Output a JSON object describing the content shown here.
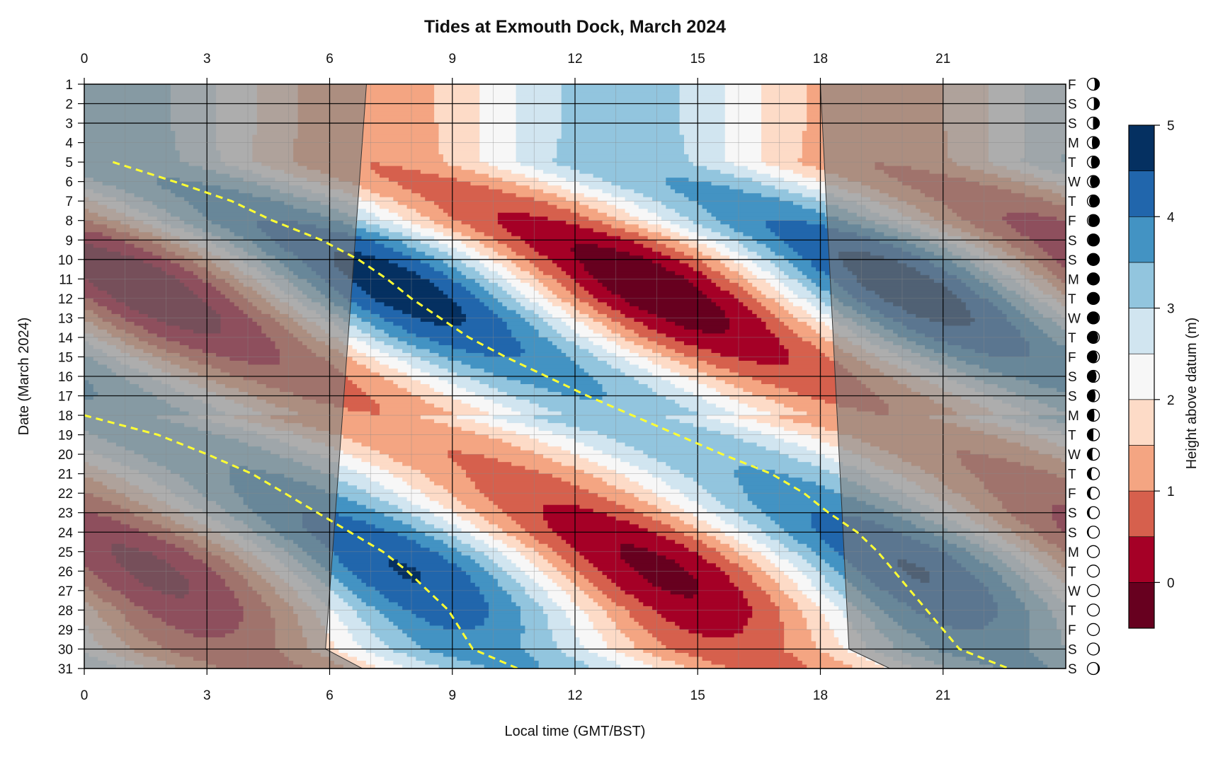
{
  "chart_data": {
    "type": "heatmap",
    "title": "Tides at Exmouth Dock, March 2024",
    "xlabel": "Local time (GMT/BST)",
    "ylabel": "Date (March 2024)",
    "colorbar_label": "Height above datum (m)",
    "xlim": [
      0,
      24
    ],
    "ylim": [
      1,
      31
    ],
    "x_ticks": [
      0,
      3,
      6,
      9,
      12,
      15,
      18,
      21
    ],
    "y_ticks": [
      1,
      2,
      3,
      4,
      5,
      6,
      7,
      8,
      9,
      10,
      11,
      12,
      13,
      14,
      15,
      16,
      17,
      18,
      19,
      20,
      21,
      22,
      23,
      24,
      25,
      26,
      27,
      28,
      29,
      30,
      31
    ],
    "colorbar_ticks": [
      0,
      1,
      2,
      3,
      4,
      5
    ],
    "levels": [
      -0.5,
      0,
      0.5,
      1,
      1.5,
      2,
      2.5,
      3,
      3.5,
      4,
      4.5,
      5
    ],
    "level_colors": [
      "#67001f",
      "#a50026",
      "#d6604d",
      "#f4a582",
      "#fddbc7",
      "#f7f7f7",
      "#d1e5f0",
      "#92c5de",
      "#4393c3",
      "#2166ac",
      "#053061"
    ],
    "high_water_times_hours": {
      "morning": [
        [
          5,
          0.7
        ],
        [
          6,
          2.2
        ],
        [
          7,
          3.6
        ],
        [
          8,
          4.6
        ],
        [
          9,
          5.8
        ],
        [
          10,
          6.7
        ],
        [
          11,
          7.4
        ],
        [
          12,
          8.0
        ],
        [
          13,
          8.7
        ],
        [
          14,
          9.4
        ],
        [
          15,
          10.3
        ],
        [
          16,
          11.3
        ],
        [
          17,
          12.3
        ],
        [
          18,
          13.4
        ],
        [
          19,
          14.5
        ],
        [
          20,
          15.6
        ],
        [
          21,
          16.8
        ],
        [
          22,
          17.6
        ],
        [
          23,
          18.2
        ],
        [
          24,
          18.9
        ],
        [
          25,
          19.4
        ],
        [
          26,
          19.8
        ],
        [
          27,
          20.2
        ],
        [
          28,
          20.6
        ],
        [
          29,
          21.0
        ],
        [
          30,
          21.4
        ],
        [
          31,
          22.6
        ]
      ],
      "evening": [
        [
          18,
          0.0
        ],
        [
          19,
          1.8
        ],
        [
          20,
          3.0
        ],
        [
          21,
          4.1
        ],
        [
          22,
          4.9
        ],
        [
          23,
          5.7
        ],
        [
          24,
          6.5
        ],
        [
          25,
          7.3
        ],
        [
          26,
          7.9
        ],
        [
          27,
          8.4
        ],
        [
          28,
          8.9
        ],
        [
          29,
          9.2
        ],
        [
          30,
          9.5
        ],
        [
          31,
          10.6
        ]
      ]
    },
    "daylight_hours": {
      "sunrise": [
        [
          1,
          6.9
        ],
        [
          30,
          5.9
        ],
        [
          31,
          6.8
        ]
      ],
      "sunset": [
        [
          1,
          18.0
        ],
        [
          30,
          18.7
        ],
        [
          31,
          19.7
        ]
      ]
    },
    "moon_phases": [
      {
        "day": 1,
        "letter": "F"
      },
      {
        "day": 2,
        "letter": "S"
      },
      {
        "day": 3,
        "letter": "S"
      },
      {
        "day": 4,
        "letter": "M"
      },
      {
        "day": 5,
        "letter": "T"
      },
      {
        "day": 6,
        "letter": "W"
      },
      {
        "day": 7,
        "letter": "T"
      },
      {
        "day": 8,
        "letter": "F"
      },
      {
        "day": 9,
        "letter": "S"
      },
      {
        "day": 10,
        "letter": "S"
      },
      {
        "day": 11,
        "letter": "M"
      },
      {
        "day": 12,
        "letter": "T"
      },
      {
        "day": 13,
        "letter": "W"
      },
      {
        "day": 14,
        "letter": "T"
      },
      {
        "day": 15,
        "letter": "F"
      },
      {
        "day": 16,
        "letter": "S"
      },
      {
        "day": 17,
        "letter": "S"
      },
      {
        "day": 18,
        "letter": "M"
      },
      {
        "day": 19,
        "letter": "T"
      },
      {
        "day": 20,
        "letter": "W"
      },
      {
        "day": 21,
        "letter": "T"
      },
      {
        "day": 22,
        "letter": "F"
      },
      {
        "day": 23,
        "letter": "S"
      },
      {
        "day": 24,
        "letter": "S"
      },
      {
        "day": 25,
        "letter": "M"
      },
      {
        "day": 26,
        "letter": "T"
      },
      {
        "day": 27,
        "letter": "W"
      },
      {
        "day": 28,
        "letter": "T"
      },
      {
        "day": 29,
        "letter": "F"
      },
      {
        "day": 30,
        "letter": "S"
      },
      {
        "day": 31,
        "letter": "S"
      }
    ],
    "moon_illumination": [
      0.62,
      0.55,
      0.47,
      0.38,
      0.3,
      0.22,
      0.15,
      0.09,
      0.05,
      0.02,
      0.01,
      0.02,
      0.05,
      0.1,
      0.16,
      0.24,
      0.32,
      0.41,
      0.5,
      0.59,
      0.68,
      0.76,
      0.83,
      0.89,
      0.94,
      0.97,
      0.99,
      0.99,
      0.97,
      0.93,
      0.88
    ],
    "moon_waxing": [
      false,
      false,
      false,
      false,
      false,
      false,
      false,
      false,
      false,
      false,
      false,
      true,
      true,
      true,
      true,
      true,
      true,
      true,
      true,
      true,
      true,
      true,
      true,
      true,
      true,
      true,
      false,
      false,
      false,
      false,
      false
    ],
    "highlight_color": "#ffff33",
    "night_shade_color": "#7f7f7f"
  }
}
